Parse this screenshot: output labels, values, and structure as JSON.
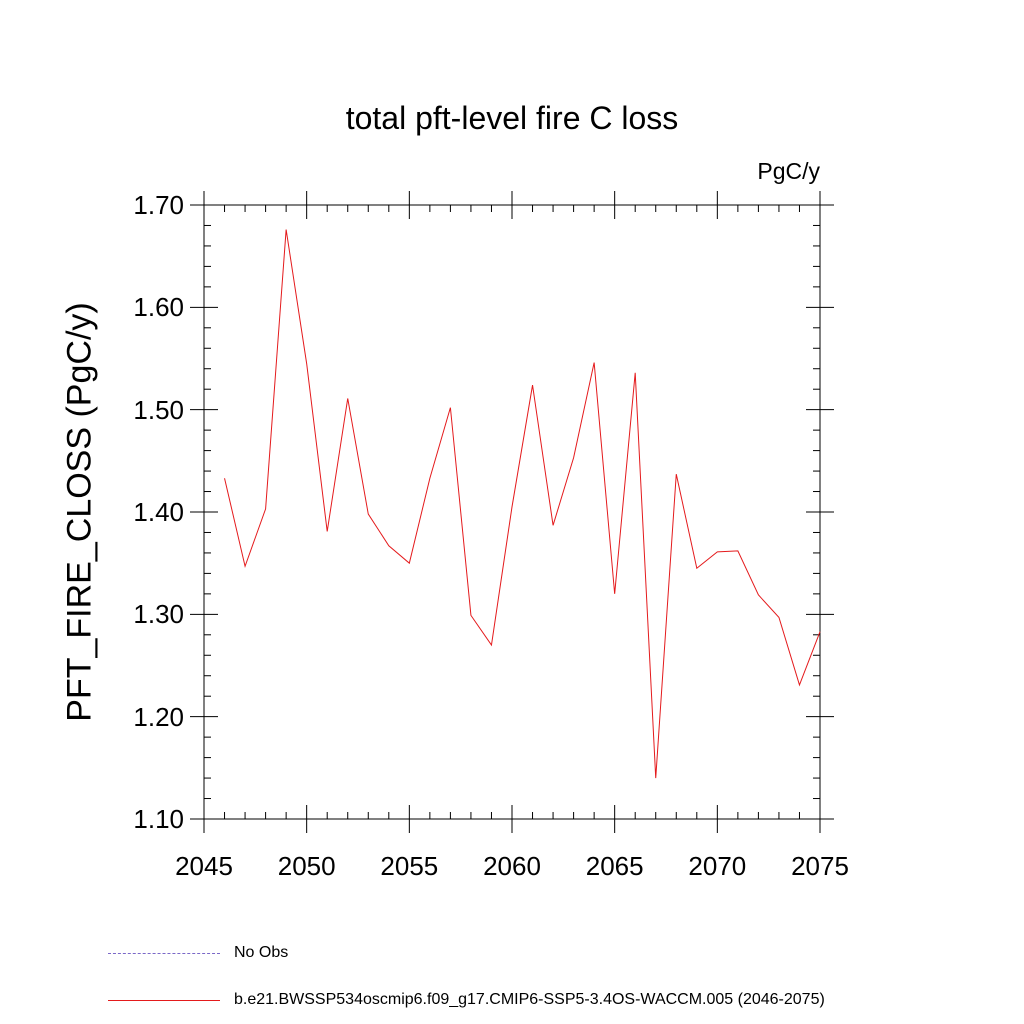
{
  "chart_data": {
    "type": "line",
    "title": "total pft-level fire C loss",
    "units": "PgC/y",
    "xlabel": "",
    "ylabel": "PFT_FIRE_CLOSS  (PgC/y)",
    "xlim": [
      2045,
      2075
    ],
    "ylim": [
      1.1,
      1.7
    ],
    "x_ticks": [
      2045,
      2050,
      2055,
      2060,
      2065,
      2070,
      2075
    ],
    "x_tick_labels": [
      "2045",
      "2050",
      "2055",
      "2060",
      "2065",
      "2070",
      "2075"
    ],
    "y_ticks": [
      1.1,
      1.2,
      1.3,
      1.4,
      1.5,
      1.6,
      1.7
    ],
    "y_tick_labels": [
      "1.10",
      "1.20",
      "1.30",
      "1.40",
      "1.50",
      "1.60",
      "1.70"
    ],
    "series": [
      {
        "name": "b.e21.BWSSP534oscmip6.f09_g17.CMIP6-SSP5-3.4OS-WACCM.005 (2046-2075)",
        "color": "#e41a1c",
        "style": "solid",
        "x": [
          2046,
          2047,
          2048,
          2049,
          2050,
          2051,
          2052,
          2053,
          2054,
          2055,
          2056,
          2057,
          2058,
          2059,
          2060,
          2061,
          2062,
          2063,
          2064,
          2065,
          2066,
          2067,
          2068,
          2069,
          2070,
          2071,
          2072,
          2073,
          2074,
          2075
        ],
        "values": [
          1.433,
          1.347,
          1.403,
          1.676,
          1.545,
          1.381,
          1.511,
          1.398,
          1.367,
          1.35,
          1.433,
          1.502,
          1.299,
          1.27,
          1.405,
          1.524,
          1.387,
          1.453,
          1.546,
          1.32,
          1.536,
          1.14,
          1.437,
          1.345,
          1.361,
          1.362,
          1.319,
          1.297,
          1.231,
          1.283
        ]
      }
    ],
    "legend": [
      {
        "label": "No Obs",
        "color": "#7b68c8",
        "style": "dashed"
      },
      {
        "label": "b.e21.BWSSP534oscmip6.f09_g17.CMIP6-SSP5-3.4OS-WACCM.005 (2046-2075)",
        "color": "#e41a1c",
        "style": "solid"
      }
    ]
  }
}
